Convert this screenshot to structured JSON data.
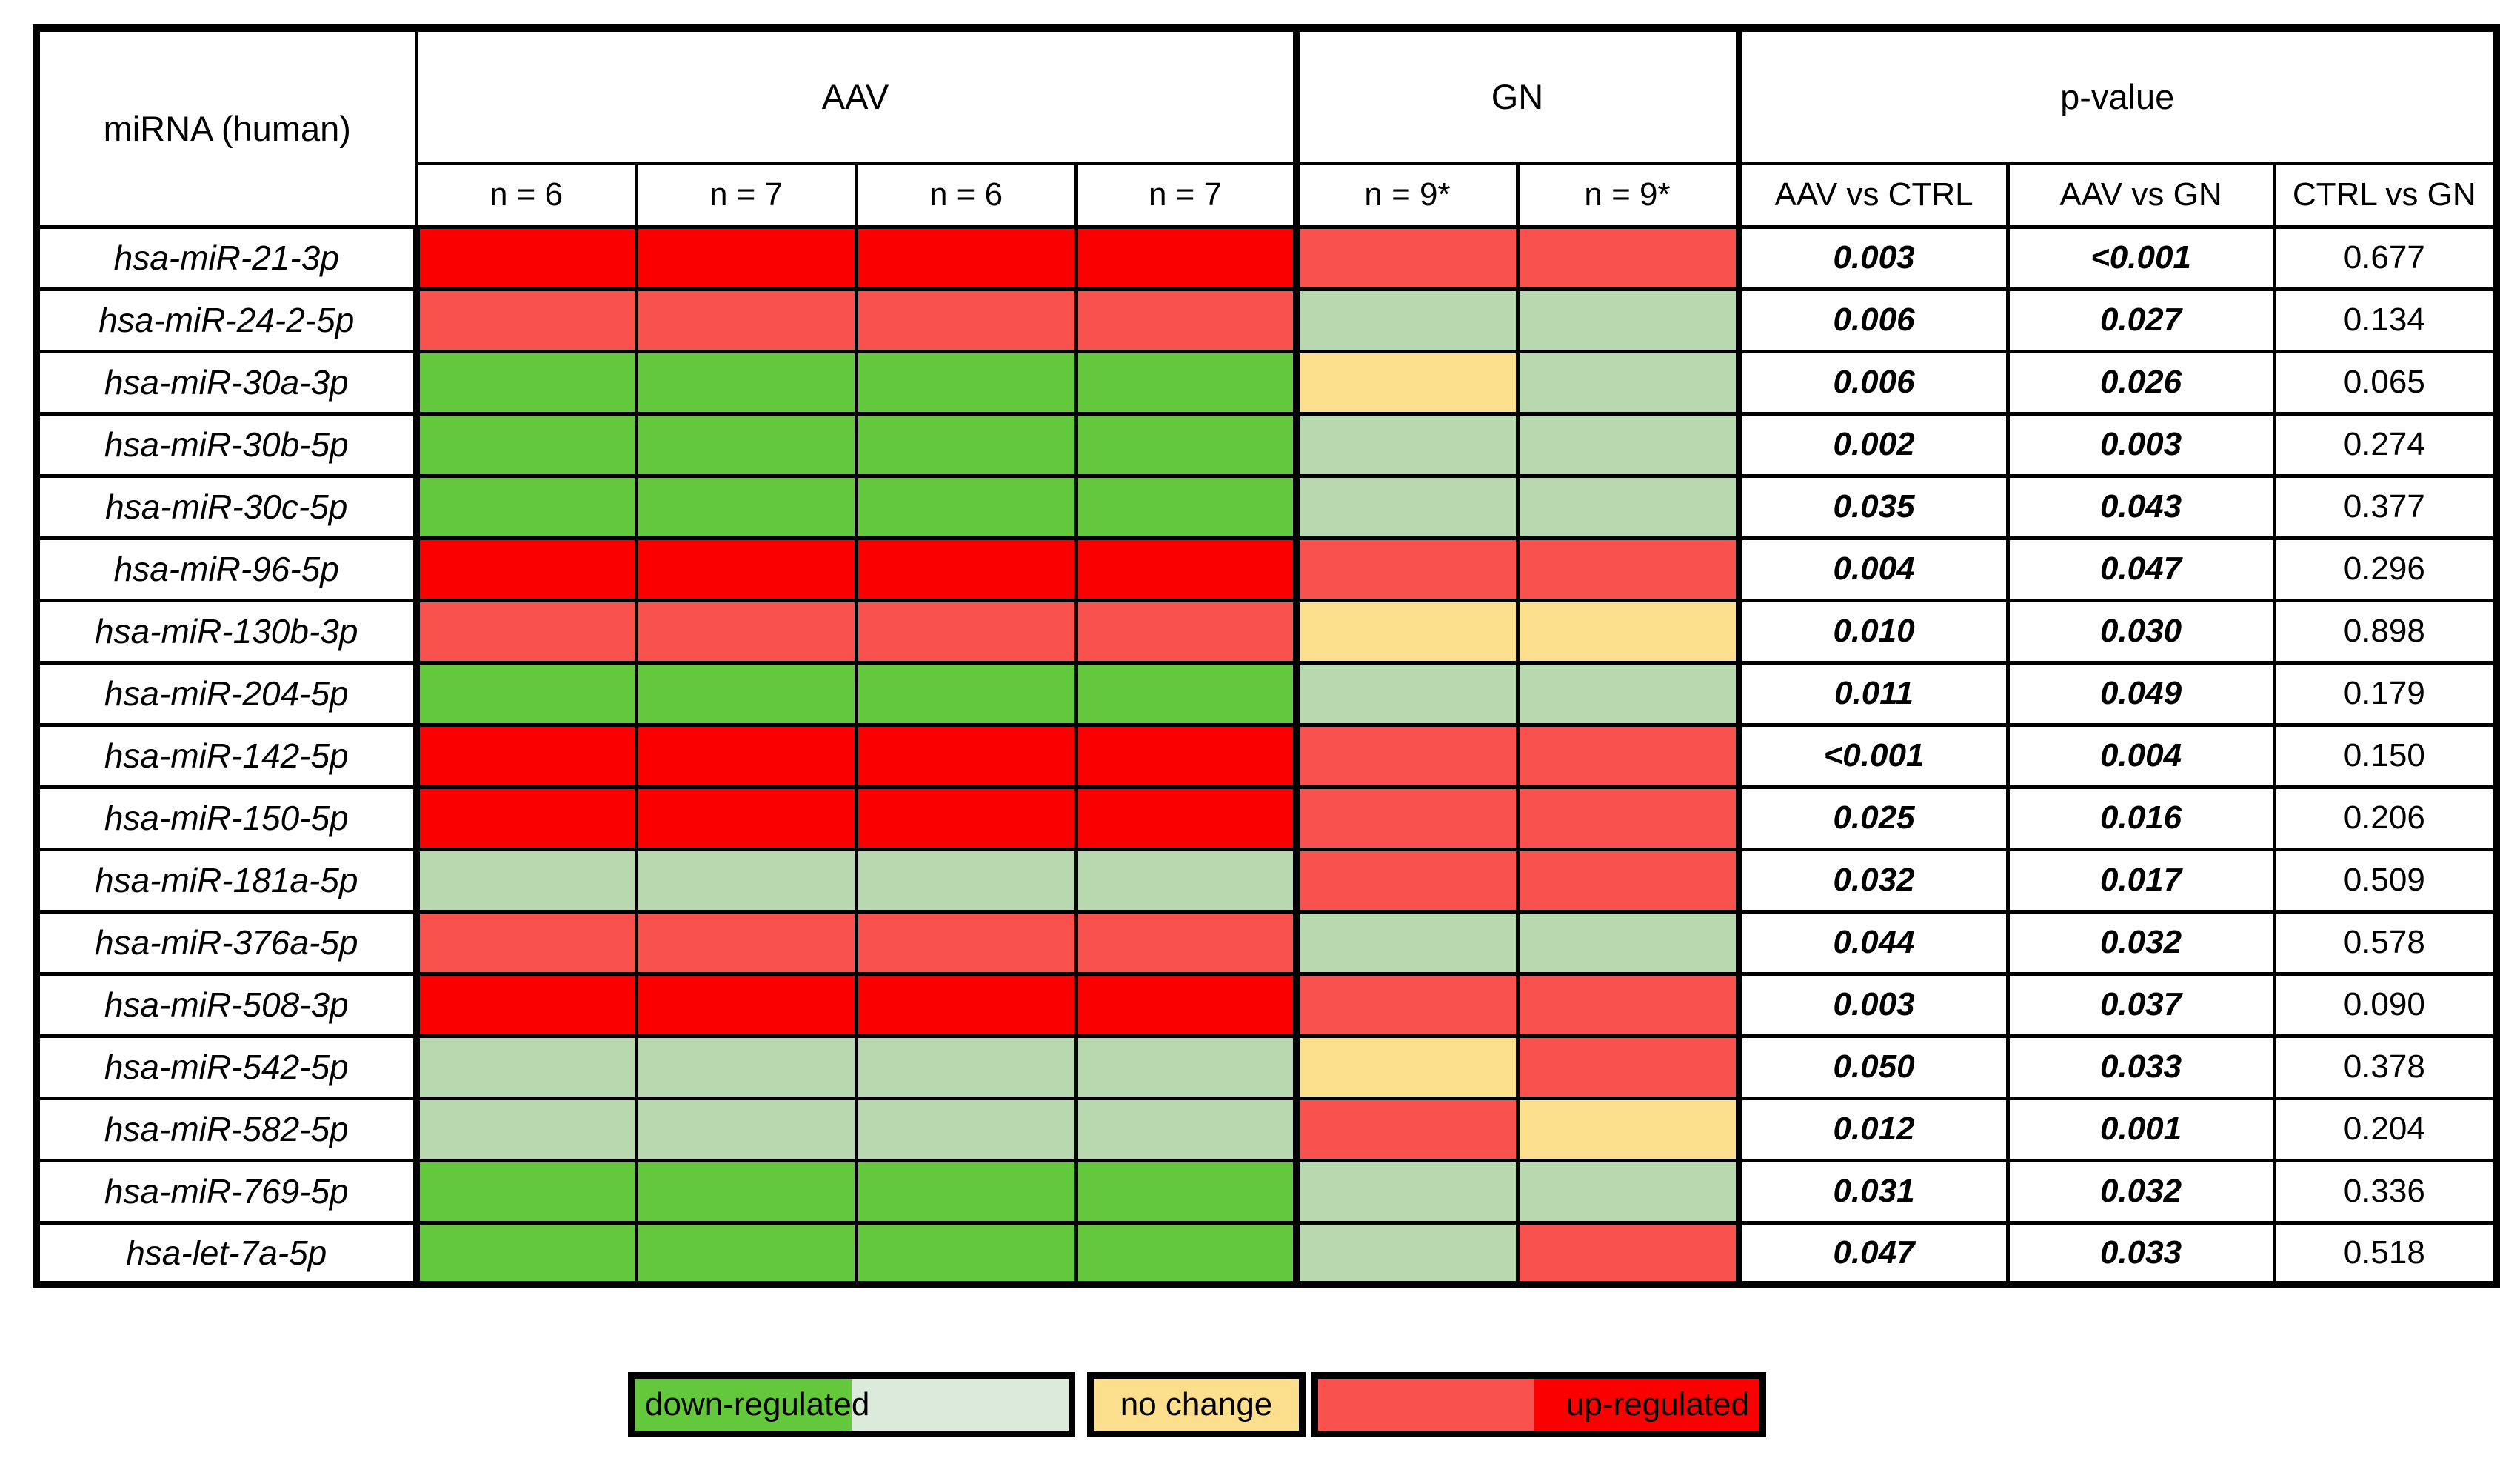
{
  "chart_data": {
    "type": "heatmap",
    "row_label_header": "miRNA (human)",
    "column_groups": [
      {
        "label": "AAV",
        "subcolumns": [
          "n = 6",
          "n = 7",
          "n = 6",
          "n = 7"
        ]
      },
      {
        "label": "GN",
        "subcolumns": [
          "n = 9*",
          "n = 9*"
        ]
      },
      {
        "label": "p-value",
        "subcolumns": [
          "AAV vs CTRL",
          "AAV vs GN",
          "CTRL vs GN"
        ]
      }
    ],
    "category_colors": {
      "up-strong": "#FA0000",
      "up-weak": "#F9514D",
      "no-change": "#FBDF8C",
      "down-weak": "#B8D8AF",
      "down-strong": "#64C83C",
      "down-weak-legend": "#DCEADB"
    },
    "rows": [
      {
        "mirna": "hsa-miR-21-3p",
        "cells": [
          "up-strong",
          "up-strong",
          "up-strong",
          "up-strong",
          "up-weak",
          "up-weak"
        ],
        "p_values": [
          "0.003",
          "<0.001",
          "0.677"
        ]
      },
      {
        "mirna": "hsa-miR-24-2-5p",
        "cells": [
          "up-weak",
          "up-weak",
          "up-weak",
          "up-weak",
          "down-weak",
          "down-weak"
        ],
        "p_values": [
          "0.006",
          "0.027",
          "0.134"
        ]
      },
      {
        "mirna": "hsa-miR-30a-3p",
        "cells": [
          "down-strong",
          "down-strong",
          "down-strong",
          "down-strong",
          "no-change",
          "down-weak"
        ],
        "p_values": [
          "0.006",
          "0.026",
          "0.065"
        ]
      },
      {
        "mirna": "hsa-miR-30b-5p",
        "cells": [
          "down-strong",
          "down-strong",
          "down-strong",
          "down-strong",
          "down-weak",
          "down-weak"
        ],
        "p_values": [
          "0.002",
          "0.003",
          "0.274"
        ]
      },
      {
        "mirna": "hsa-miR-30c-5p",
        "cells": [
          "down-strong",
          "down-strong",
          "down-strong",
          "down-strong",
          "down-weak",
          "down-weak"
        ],
        "p_values": [
          "0.035",
          "0.043",
          "0.377"
        ]
      },
      {
        "mirna": "hsa-miR-96-5p",
        "cells": [
          "up-strong",
          "up-strong",
          "up-strong",
          "up-strong",
          "up-weak",
          "up-weak"
        ],
        "p_values": [
          "0.004",
          "0.047",
          "0.296"
        ]
      },
      {
        "mirna": "hsa-miR-130b-3p",
        "cells": [
          "up-weak",
          "up-weak",
          "up-weak",
          "up-weak",
          "no-change",
          "no-change"
        ],
        "p_values": [
          "0.010",
          "0.030",
          "0.898"
        ]
      },
      {
        "mirna": "hsa-miR-204-5p",
        "cells": [
          "down-strong",
          "down-strong",
          "down-strong",
          "down-strong",
          "down-weak",
          "down-weak"
        ],
        "p_values": [
          "0.011",
          "0.049",
          "0.179"
        ]
      },
      {
        "mirna": "hsa-miR-142-5p",
        "cells": [
          "up-strong",
          "up-strong",
          "up-strong",
          "up-strong",
          "up-weak",
          "up-weak"
        ],
        "p_values": [
          "<0.001",
          "0.004",
          "0.150"
        ]
      },
      {
        "mirna": "hsa-miR-150-5p",
        "cells": [
          "up-strong",
          "up-strong",
          "up-strong",
          "up-strong",
          "up-weak",
          "up-weak"
        ],
        "p_values": [
          "0.025",
          "0.016",
          "0.206"
        ]
      },
      {
        "mirna": "hsa-miR-181a-5p",
        "cells": [
          "down-weak",
          "down-weak",
          "down-weak",
          "down-weak",
          "up-weak",
          "up-weak"
        ],
        "p_values": [
          "0.032",
          "0.017",
          "0.509"
        ]
      },
      {
        "mirna": "hsa-miR-376a-5p",
        "cells": [
          "up-weak",
          "up-weak",
          "up-weak",
          "up-weak",
          "down-weak",
          "down-weak"
        ],
        "p_values": [
          "0.044",
          "0.032",
          "0.578"
        ]
      },
      {
        "mirna": "hsa-miR-508-3p",
        "cells": [
          "up-strong",
          "up-strong",
          "up-strong",
          "up-strong",
          "up-weak",
          "up-weak"
        ],
        "p_values": [
          "0.003",
          "0.037",
          "0.090"
        ]
      },
      {
        "mirna": "hsa-miR-542-5p",
        "cells": [
          "down-weak",
          "down-weak",
          "down-weak",
          "down-weak",
          "no-change",
          "up-weak"
        ],
        "p_values": [
          "0.050",
          "0.033",
          "0.378"
        ]
      },
      {
        "mirna": "hsa-miR-582-5p",
        "cells": [
          "down-weak",
          "down-weak",
          "down-weak",
          "down-weak",
          "up-weak",
          "no-change"
        ],
        "p_values": [
          "0.012",
          "0.001",
          "0.204"
        ]
      },
      {
        "mirna": "hsa-miR-769-5p",
        "cells": [
          "down-strong",
          "down-strong",
          "down-strong",
          "down-strong",
          "down-weak",
          "down-weak"
        ],
        "p_values": [
          "0.031",
          "0.032",
          "0.336"
        ]
      },
      {
        "mirna": "hsa-let-7a-5p",
        "cells": [
          "down-strong",
          "down-strong",
          "down-strong",
          "down-strong",
          "down-weak",
          "up-weak"
        ],
        "p_values": [
          "0.047",
          "0.033",
          "0.518"
        ]
      }
    ],
    "legend": [
      {
        "label": "down-regulated",
        "colors": [
          "down-strong",
          "down-weak-legend"
        ]
      },
      {
        "label": "no change",
        "colors": [
          "no-change",
          "no-change"
        ]
      },
      {
        "label": "up-regulated",
        "colors": [
          "up-weak",
          "up-strong"
        ]
      }
    ],
    "significant_p_columns": [
      0,
      1
    ]
  }
}
